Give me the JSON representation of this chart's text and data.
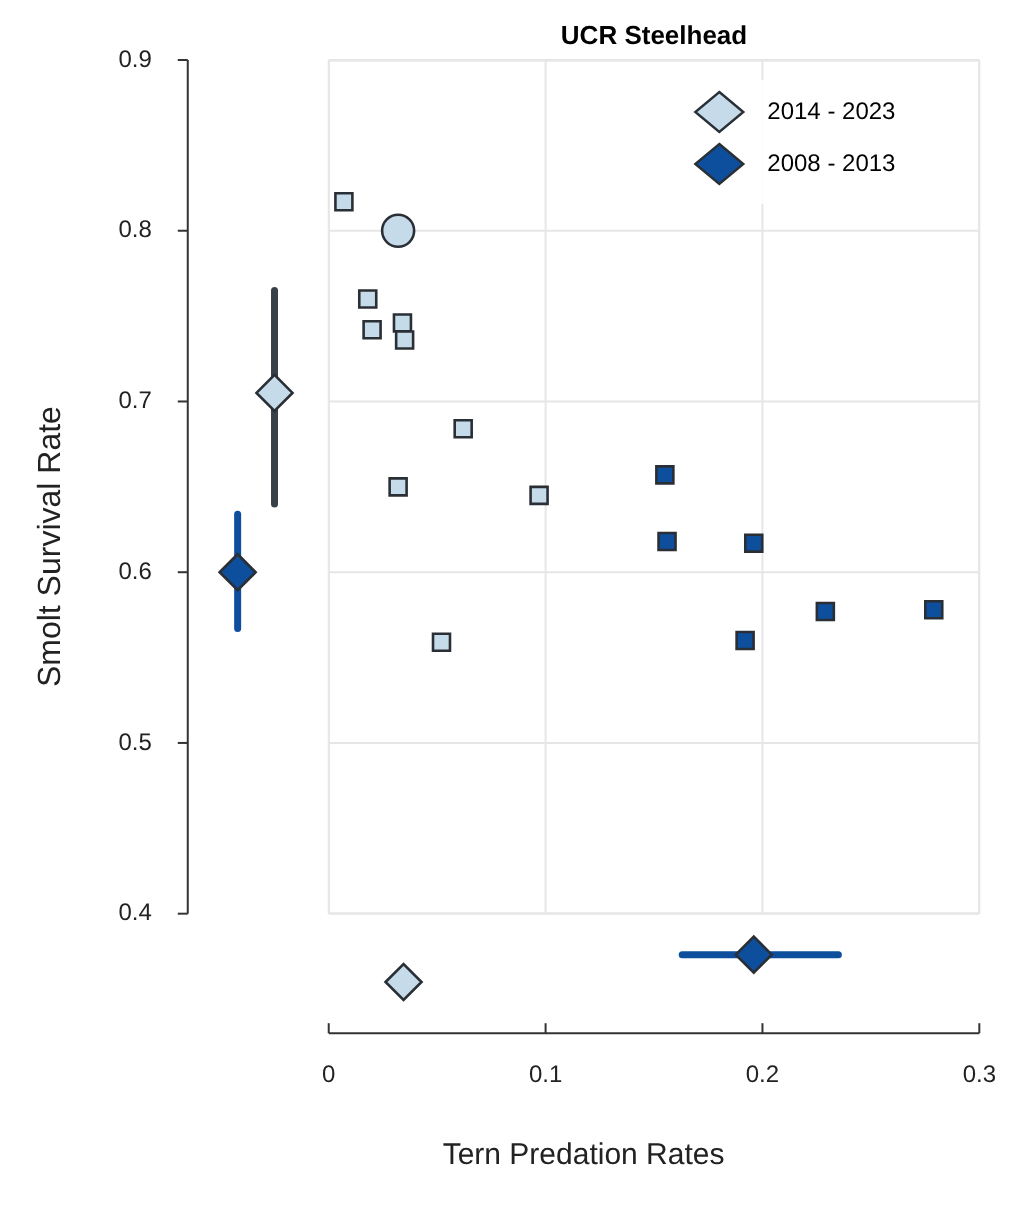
{
  "chart_data": {
    "type": "scatter",
    "title": "UCR Steelhead",
    "xlabel": "Tern Predation Rates",
    "ylabel": "Smolt Survival Rate",
    "xlim": [
      -0.065,
      0.3
    ],
    "ylim": [
      0.33,
      0.9
    ],
    "xticks": [
      0,
      0.1,
      0.2,
      0.3
    ],
    "yticks": [
      0.4,
      0.5,
      0.6,
      0.7,
      0.8,
      0.9
    ],
    "grid": true,
    "legend": "top right",
    "series": [
      {
        "color": "#c6dbea",
        "marker": "square",
        "x": [
          0.007,
          0.018,
          0.02,
          0.034,
          0.035,
          0.062,
          0.032,
          0.097,
          0.052
        ],
        "values": [
          0.817,
          0.76,
          0.742,
          0.746,
          0.736,
          0.684,
          0.65,
          0.645,
          0.559
        ]
      },
      {
        "color": "#c6dbea",
        "marker": "circle",
        "x": [
          0.032
        ],
        "values": [
          0.8
        ]
      },
      {
        "color": "#0d4f9c",
        "marker": "square",
        "x": [
          0.155,
          0.156,
          0.196,
          0.229,
          0.279,
          0.192
        ],
        "values": [
          0.657,
          0.618,
          0.617,
          0.577,
          0.578,
          0.56
        ]
      },
      {
        "name": "2014 - 2023",
        "color": "#c6dbea",
        "marker": "diamond",
        "x": [
          -0.025,
          0.0345
        ],
        "values": [
          0.705,
          0.36
        ],
        "errors": [
          [
            0.64,
            0.765
          ],
          null
        ],
        "xerrors": [
          null,
          [
            0.03,
            0.04
          ]
        ]
      },
      {
        "name": "2008 - 2013",
        "color": "#0d4f9c",
        "marker": "diamond",
        "x": [
          -0.042,
          0.196
        ],
        "values": [
          0.6,
          0.376
        ],
        "errors": [
          [
            0.567,
            0.634
          ],
          null
        ],
        "xerrors": [
          null,
          [
            0.163,
            0.235
          ]
        ]
      }
    ]
  }
}
